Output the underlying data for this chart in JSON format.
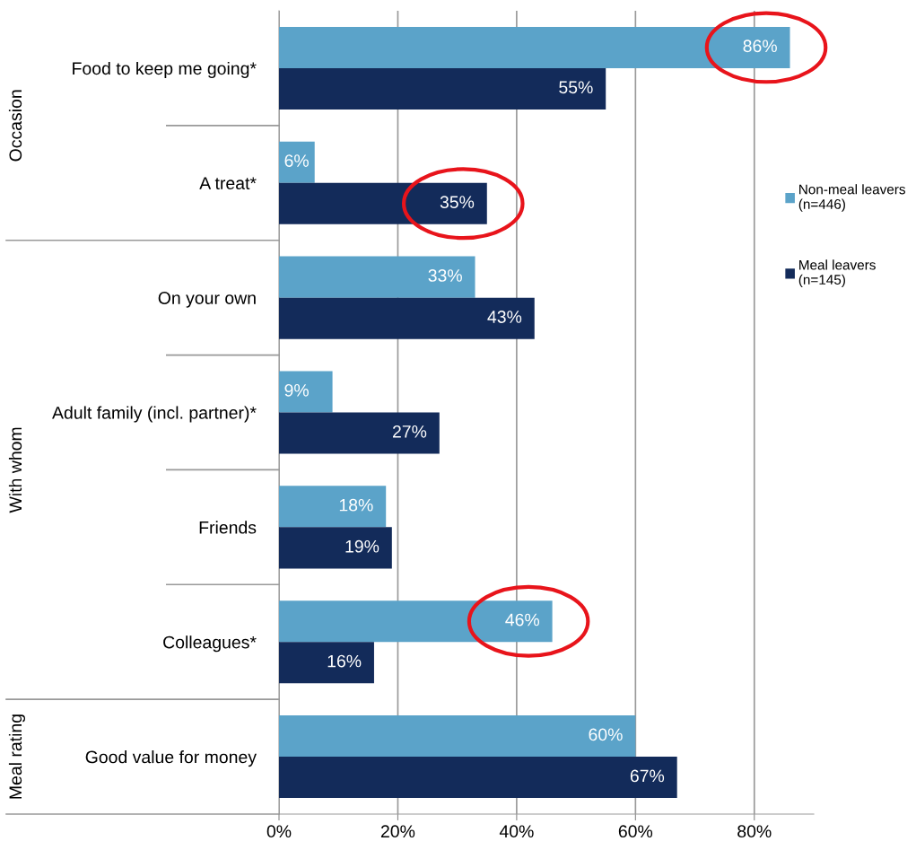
{
  "chart_data": {
    "type": "bar",
    "orientation": "horizontal",
    "categories": [
      "Food to keep me going*",
      "A treat*",
      "On your own",
      "Adult family (incl. partner)*",
      "Friends",
      "Colleagues*",
      "Good value for money"
    ],
    "series": [
      {
        "name": "Non-meal leavers\n(n=446)",
        "color": "#5ba3c9",
        "values": [
          86,
          6,
          33,
          9,
          18,
          46,
          60
        ],
        "value_labels": [
          "86%",
          "6%",
          "33%",
          "9%",
          "18%",
          "46%",
          "60%"
        ]
      },
      {
        "name": "Meal leavers\n(n=145)",
        "color": "#132b5a",
        "values": [
          55,
          35,
          43,
          27,
          19,
          16,
          67
        ],
        "value_labels": [
          "55%",
          "35%",
          "43%",
          "27%",
          "19%",
          "16%",
          "67%"
        ]
      }
    ],
    "xlim": [
      0,
      90
    ],
    "xticks": [
      {
        "value": 0,
        "label": "0%"
      },
      {
        "value": 20,
        "label": "20%"
      },
      {
        "value": 40,
        "label": "40%"
      },
      {
        "value": 60,
        "label": "60%"
      },
      {
        "value": 80,
        "label": "80%"
      }
    ],
    "grid": "x",
    "legend": "right",
    "annotations": [
      "Occasion",
      "With whom",
      "Meal rating"
    ]
  }
}
